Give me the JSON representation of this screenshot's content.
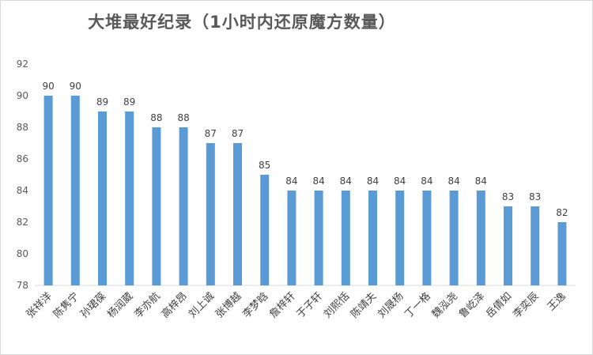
{
  "chart_data": {
    "type": "bar",
    "title": "大堆最好纪录（1小时内还原魔方数量）",
    "xlabel": "",
    "ylabel": "",
    "ylim": [
      78,
      92
    ],
    "yticks": [
      78,
      80,
      82,
      84,
      86,
      88,
      90,
      92
    ],
    "grid": false,
    "legend": "none",
    "data_labels": true,
    "bar_color": "#5b9bd5",
    "categories": [
      "张祥洋",
      "陈隽宁",
      "孙珺葆",
      "杨润葳",
      "李亦航",
      "高梓昂",
      "刘上诚",
      "张博越",
      "李梦晗",
      "詹梓轩",
      "于子轩",
      "刘熙恬",
      "陈靖夫",
      "刘晟杨",
      "丁一格",
      "魏泓尧",
      "鲁屹泽",
      "岳倩如",
      "李奕辰",
      "王逸"
    ],
    "values": [
      90,
      90,
      89,
      89,
      88,
      88,
      87,
      87,
      85,
      84,
      84,
      84,
      84,
      84,
      84,
      84,
      84,
      83,
      83,
      82
    ]
  }
}
